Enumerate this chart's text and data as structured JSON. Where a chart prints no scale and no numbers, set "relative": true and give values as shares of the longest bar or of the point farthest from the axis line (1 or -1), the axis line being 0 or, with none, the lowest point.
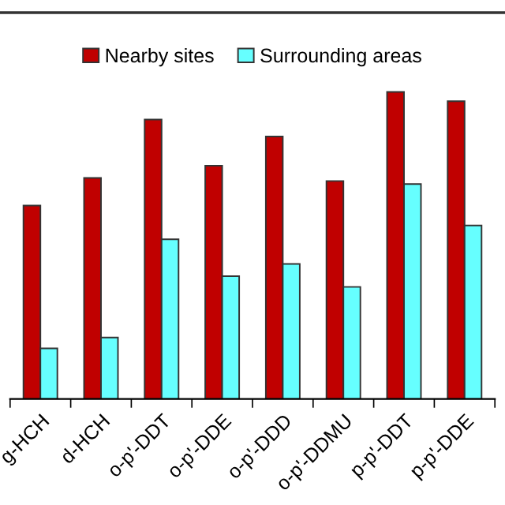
{
  "chart_data": {
    "type": "bar",
    "relative": true,
    "categories": [
      "g-HCH",
      "d-HCH",
      "o-p'-DDT",
      "o-p'-DDE",
      "o-p'-DDD",
      "o-p'-DDMU",
      "p-p'-DDT",
      "p-p'-DDE"
    ],
    "series": [
      {
        "name": "Nearby sites",
        "color": "#c00000",
        "values": [
          0.63,
          0.72,
          0.91,
          0.76,
          0.855,
          0.71,
          1.0,
          0.97
        ]
      },
      {
        "name": "Surrounding areas",
        "color": "#66ffff",
        "values": [
          0.165,
          0.2,
          0.52,
          0.4,
          0.44,
          0.365,
          0.7,
          0.565
        ]
      }
    ],
    "legend": "top",
    "grid": false
  }
}
